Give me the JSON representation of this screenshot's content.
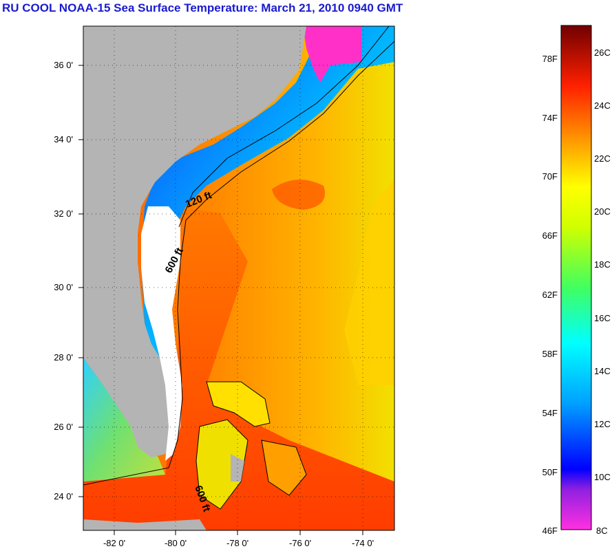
{
  "title": "RU COOL  NOAA-15  Sea Surface Temperature:  March 21, 2010 0940 GMT",
  "map": {
    "lat_labels": [
      "36 0'",
      "34 0'",
      "32 0'",
      "30 0'",
      "28 0'",
      "26 0'",
      "24 0'"
    ],
    "lon_labels": [
      "-82 0'",
      "-80 0'",
      "-78 0'",
      "-76 0'",
      "-74 0'"
    ],
    "contour_labels": [
      "120 ft",
      "600 ft",
      "600 ft"
    ],
    "colors": {
      "land": "#b4b4b4",
      "cloud": "#ffffff",
      "warm": "#ff4a00",
      "mid": "#ffaa00",
      "cool": "#ffe000",
      "cold": "#0050ff"
    }
  },
  "colorbar": {
    "f_labels": [
      "78F",
      "74F",
      "70F",
      "66F",
      "62F",
      "58F",
      "54F",
      "50F",
      "46F"
    ],
    "c_labels": [
      "26C",
      "24C",
      "22C",
      "20C",
      "18C",
      "16C",
      "14C",
      "12C",
      "10C",
      "8C"
    ],
    "range_c": [
      8,
      27
    ]
  }
}
